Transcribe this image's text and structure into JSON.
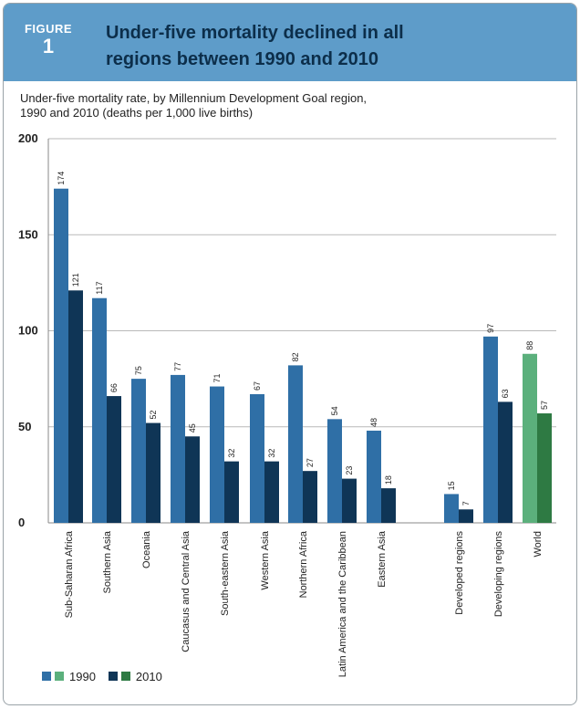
{
  "figure": {
    "label": "FIGURE",
    "number": "1",
    "title": "Under-five mortality declined in all regions between 1990 and 2010",
    "subtitle_line1": "Under-five mortality rate, by Millennium Development Goal region,",
    "subtitle_line2": "1990 and 2010 (deaths per 1,000 live births)"
  },
  "colors": {
    "header_bg": "#5e9cc9",
    "title_text": "#0c2e4a",
    "bar_1990": "#2f6fa6",
    "bar_2010": "#0f3556",
    "world_1990": "#5bb07c",
    "world_2010": "#2e7a43",
    "grid": "#b9b9b9"
  },
  "chart_data": {
    "type": "bar",
    "categories": [
      "Sub-Saharan Africa",
      "Southern Asia",
      "Oceania",
      "Caucasus and Central Asia",
      "South-eastern Asia",
      "Western Asia",
      "Northern Africa",
      "Latin America and the Caribbean",
      "Eastern Asia",
      "Developed regions",
      "Developing regions",
      "World"
    ],
    "series": [
      {
        "name": "1990",
        "values": [
          174,
          117,
          75,
          77,
          71,
          67,
          82,
          54,
          48,
          15,
          97,
          88
        ]
      },
      {
        "name": "2010",
        "values": [
          121,
          66,
          52,
          45,
          32,
          32,
          27,
          23,
          18,
          7,
          63,
          57
        ]
      }
    ],
    "ylim": [
      0,
      200
    ],
    "yticks": [
      0,
      50,
      100,
      150,
      200
    ],
    "grid": true,
    "legend_placement": "bottom-left",
    "title": "",
    "xlabel": "",
    "ylabel": ""
  },
  "legend": {
    "label_1990": "1990",
    "label_2010": "2010"
  }
}
